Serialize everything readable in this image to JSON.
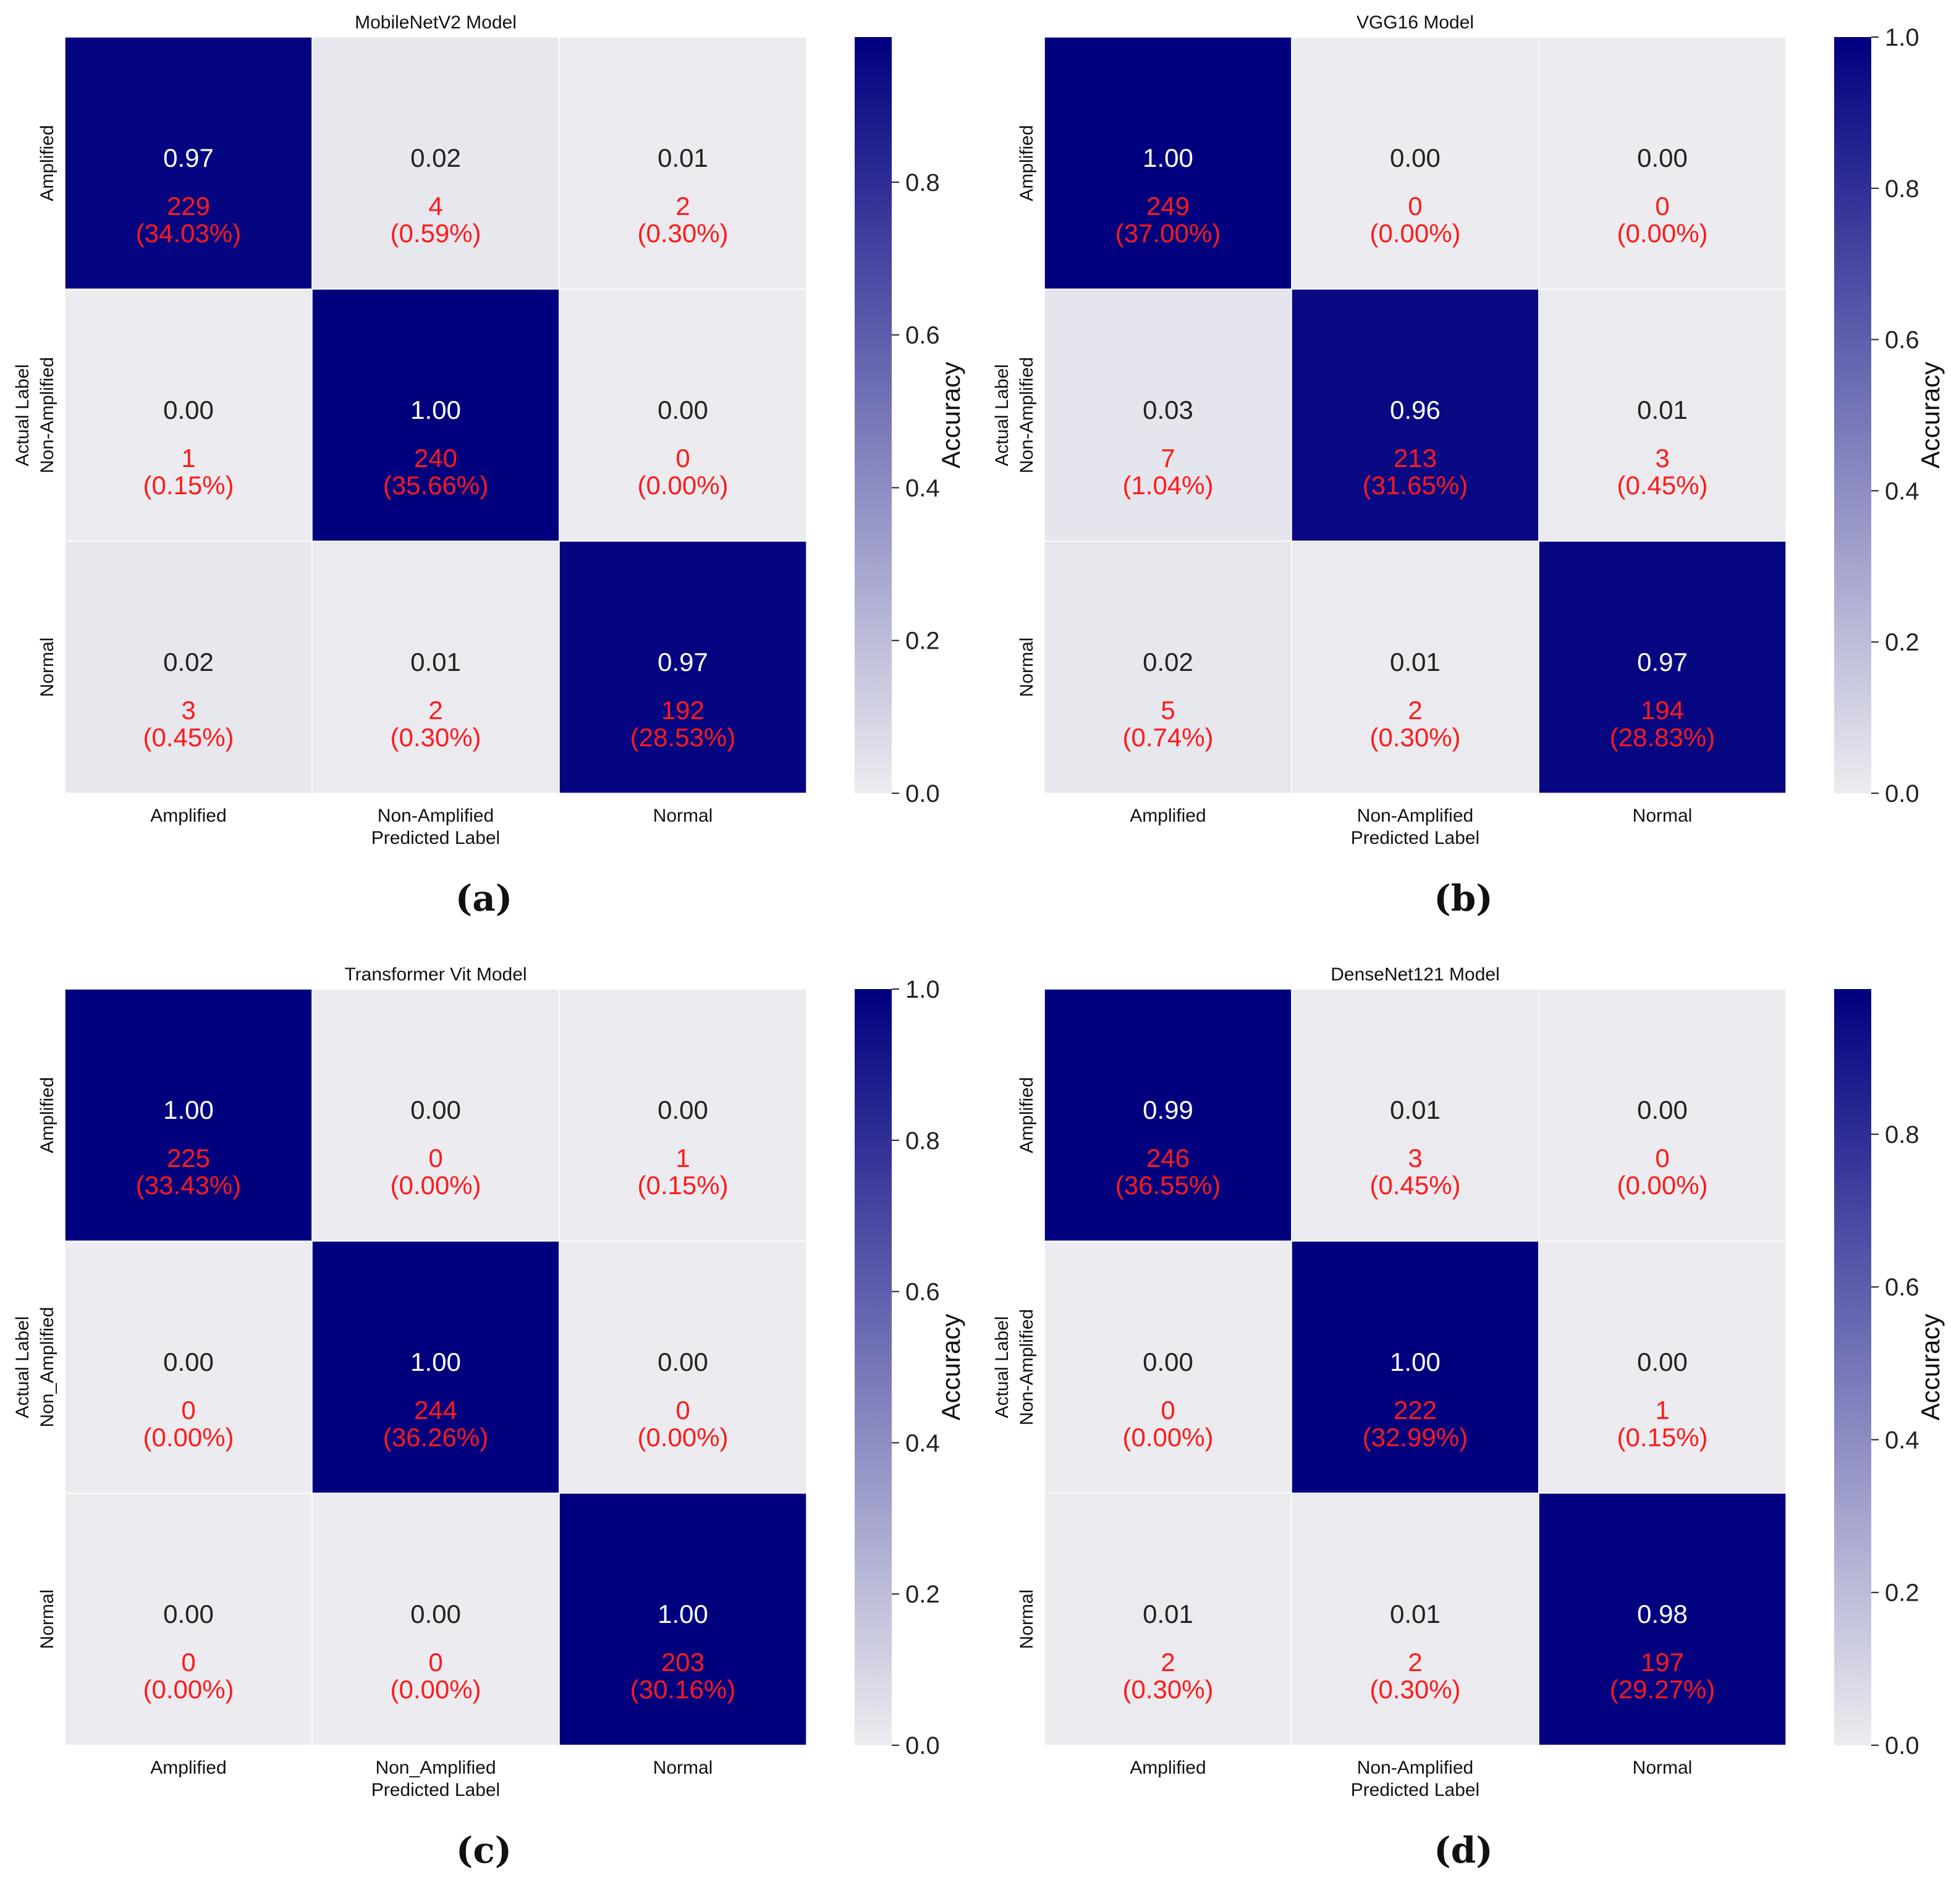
{
  "colorbar_label": "Accuracy",
  "axis_labels": {
    "x": "Predicted Label",
    "y": "Actual Label"
  },
  "colors": {
    "high": "#00007f",
    "low": "#ececf0",
    "count_text": "#ff1a1a",
    "text_on_dark": "#ffffff",
    "text_on_light": "#222222"
  },
  "chart_data": [
    {
      "type": "heatmap",
      "panel_label": "(a)",
      "title": "MobileNetV2 Model",
      "xlabel": "Predicted Label",
      "ylabel": "Actual Label",
      "x_categories": [
        "Amplified",
        "Non-Amplified",
        "Normal"
      ],
      "y_categories": [
        "Amplified",
        "Non-Amplified",
        "Normal"
      ],
      "values": [
        [
          "0.97",
          "0.02",
          "0.01"
        ],
        [
          "0.00",
          "1.00",
          "0.00"
        ],
        [
          "0.02",
          "0.01",
          "0.97"
        ]
      ],
      "counts": [
        [
          "229",
          "4",
          "2"
        ],
        [
          "1",
          "240",
          "0"
        ],
        [
          "3",
          "2",
          "192"
        ]
      ],
      "percents": [
        [
          "(34.03%)",
          "(0.59%)",
          "(0.30%)"
        ],
        [
          "(0.15%)",
          "(35.66%)",
          "(0.00%)"
        ],
        [
          "(0.45%)",
          "(0.30%)",
          "(28.53%)"
        ]
      ],
      "colorbar": {
        "range": [
          0,
          0.99
        ],
        "ticks": [
          "0.0",
          "0.2",
          "0.4",
          "0.6",
          "0.8"
        ]
      }
    },
    {
      "type": "heatmap",
      "panel_label": "(b)",
      "title": "VGG16 Model",
      "xlabel": "Predicted Label",
      "ylabel": "Actual Label",
      "x_categories": [
        "Amplified",
        "Non-Amplified",
        "Normal"
      ],
      "y_categories": [
        "Amplified",
        "Non-Amplified",
        "Normal"
      ],
      "values": [
        [
          "1.00",
          "0.00",
          "0.00"
        ],
        [
          "0.03",
          "0.96",
          "0.01"
        ],
        [
          "0.02",
          "0.01",
          "0.97"
        ]
      ],
      "counts": [
        [
          "249",
          "0",
          "0"
        ],
        [
          "7",
          "213",
          "3"
        ],
        [
          "5",
          "2",
          "194"
        ]
      ],
      "percents": [
        [
          "(37.00%)",
          "(0.00%)",
          "(0.00%)"
        ],
        [
          "(1.04%)",
          "(31.65%)",
          "(0.45%)"
        ],
        [
          "(0.74%)",
          "(0.30%)",
          "(28.83%)"
        ]
      ],
      "colorbar": {
        "range": [
          0,
          1.0
        ],
        "ticks": [
          "0.0",
          "0.2",
          "0.4",
          "0.6",
          "0.8",
          "1.0"
        ]
      }
    },
    {
      "type": "heatmap",
      "panel_label": "(c)",
      "title": "Transformer Vit Model",
      "xlabel": "Predicted Label",
      "ylabel": "Actual Label",
      "x_categories": [
        "Amplified",
        "Non_Amplified",
        "Normal"
      ],
      "y_categories": [
        "Amplified",
        "Non_Amplified",
        "Normal"
      ],
      "values": [
        [
          "1.00",
          "0.00",
          "0.00"
        ],
        [
          "0.00",
          "1.00",
          "0.00"
        ],
        [
          "0.00",
          "0.00",
          "1.00"
        ]
      ],
      "counts": [
        [
          "225",
          "0",
          "1"
        ],
        [
          "0",
          "244",
          "0"
        ],
        [
          "0",
          "0",
          "203"
        ]
      ],
      "percents": [
        [
          "(33.43%)",
          "(0.00%)",
          "(0.15%)"
        ],
        [
          "(0.00%)",
          "(36.26%)",
          "(0.00%)"
        ],
        [
          "(0.00%)",
          "(0.00%)",
          "(30.16%)"
        ]
      ],
      "colorbar": {
        "range": [
          0,
          1.0
        ],
        "ticks": [
          "0.0",
          "0.2",
          "0.4",
          "0.6",
          "0.8",
          "1.0"
        ]
      }
    },
    {
      "type": "heatmap",
      "panel_label": "(d)",
      "title": "DenseNet121 Model",
      "xlabel": "Predicted Label",
      "ylabel": "Actual Label",
      "x_categories": [
        "Amplified",
        "Non-Amplified",
        "Normal"
      ],
      "y_categories": [
        "Amplified",
        "Non-Amplified",
        "Normal"
      ],
      "values": [
        [
          "0.99",
          "0.01",
          "0.00"
        ],
        [
          "0.00",
          "1.00",
          "0.00"
        ],
        [
          "0.01",
          "0.01",
          "0.98"
        ]
      ],
      "counts": [
        [
          "246",
          "3",
          "0"
        ],
        [
          "0",
          "222",
          "1"
        ],
        [
          "2",
          "2",
          "197"
        ]
      ],
      "percents": [
        [
          "(36.55%)",
          "(0.45%)",
          "(0.00%)"
        ],
        [
          "(0.00%)",
          "(32.99%)",
          "(0.15%)"
        ],
        [
          "(0.30%)",
          "(0.30%)",
          "(29.27%)"
        ]
      ],
      "colorbar": {
        "range": [
          0,
          0.99
        ],
        "ticks": [
          "0.0",
          "0.2",
          "0.4",
          "0.6",
          "0.8"
        ]
      }
    }
  ]
}
